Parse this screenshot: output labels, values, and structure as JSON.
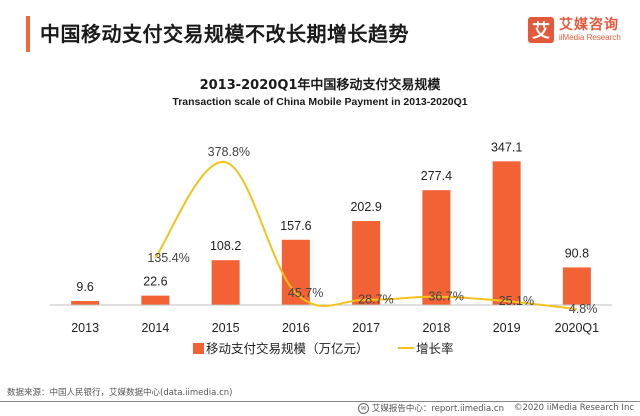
{
  "header": {
    "title": "中国移动支付交易规模不改长期增长趋势",
    "logo": {
      "mark": "艾",
      "name_cn": "艾媒咨询",
      "name_en": "iiMedia Research"
    }
  },
  "colors": {
    "bar": "#f36234",
    "line": "#f5c21a",
    "accent": "#ee6a3c",
    "axis": "#bfbfbf"
  },
  "chart_data": {
    "type": "bar",
    "title": "2013-2020Q1年中国移动支付交易规模",
    "subtitle": "Transaction scale of China Mobile Payment in 2013-2020Q1",
    "categories": [
      "2013",
      "2014",
      "2015",
      "2016",
      "2017",
      "2018",
      "2019",
      "2020Q1"
    ],
    "series": [
      {
        "name": "移动支付交易规模（万亿元）",
        "type": "bar",
        "axis": "left",
        "values": [
          9.6,
          22.6,
          108.2,
          157.6,
          202.9,
          277.4,
          347.1,
          90.8
        ],
        "labels": [
          "9.6",
          "22.6",
          "108.2",
          "157.6",
          "202.9",
          "277.4",
          "347.1",
          "90.8"
        ]
      },
      {
        "name": "增长率",
        "type": "line",
        "axis": "right",
        "smooth": true,
        "values": [
          null,
          135.4,
          378.8,
          45.7,
          28.7,
          36.7,
          25.1,
          4.8
        ],
        "labels": [
          null,
          "135.4%",
          "378.8%",
          "45.7%",
          "28.7%",
          "36.7%",
          "25.1%",
          "4.8%"
        ]
      }
    ],
    "xlabel": "",
    "ylabel": "",
    "ylim": [
      0,
      360
    ],
    "y2lim": [
      0,
      420
    ],
    "grid": false,
    "axis_ticks_shown": false,
    "legend": {
      "position": "bottom",
      "entries": [
        "移动支付交易规模（万亿元）",
        "增长率"
      ]
    }
  },
  "footer": {
    "source": "数据来源：中国人民银行，艾媒数据中心(data.iimedia.cn)",
    "report_center": "艾媒报告中心：report.iimedia.cn",
    "copyright": "©2020  iiMedia Research  Inc"
  }
}
